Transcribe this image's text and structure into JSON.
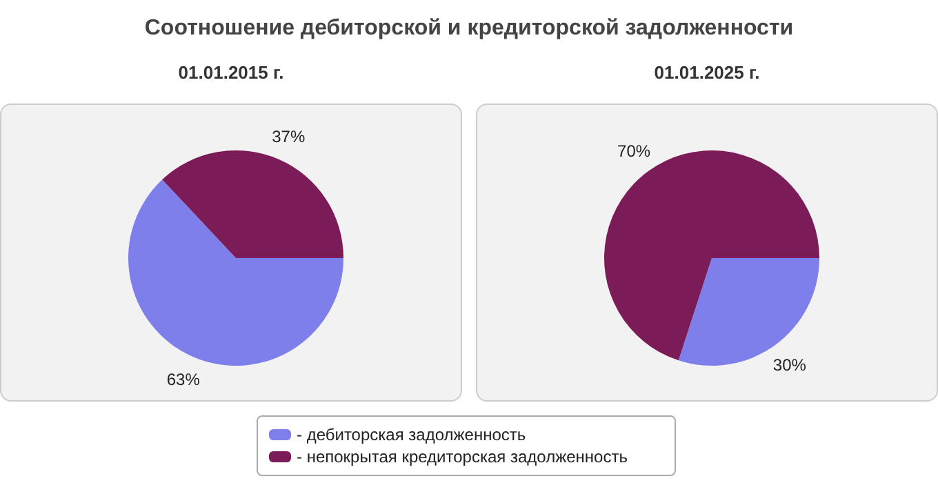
{
  "chart_data": [
    {
      "type": "pie",
      "title": "Соотношение дебиторской и кредиторской задолженности",
      "subtitle": "01.01.2015 г.",
      "categories": [
        "- дебиторская задолженность",
        "- непокрытая кредиторская задолженность"
      ],
      "values": [
        63,
        37
      ],
      "value_labels": [
        "63%",
        "37%"
      ],
      "colors": [
        "#7f7fec",
        "#7b1c58"
      ],
      "legend": "bottom"
    },
    {
      "type": "pie",
      "subtitle": "01.01.2025 г.",
      "values": [
        30,
        70
      ],
      "value_labels": [
        "30%",
        "70%"
      ],
      "colors": [
        "#7f7fec",
        "#7b1c58"
      ]
    }
  ]
}
